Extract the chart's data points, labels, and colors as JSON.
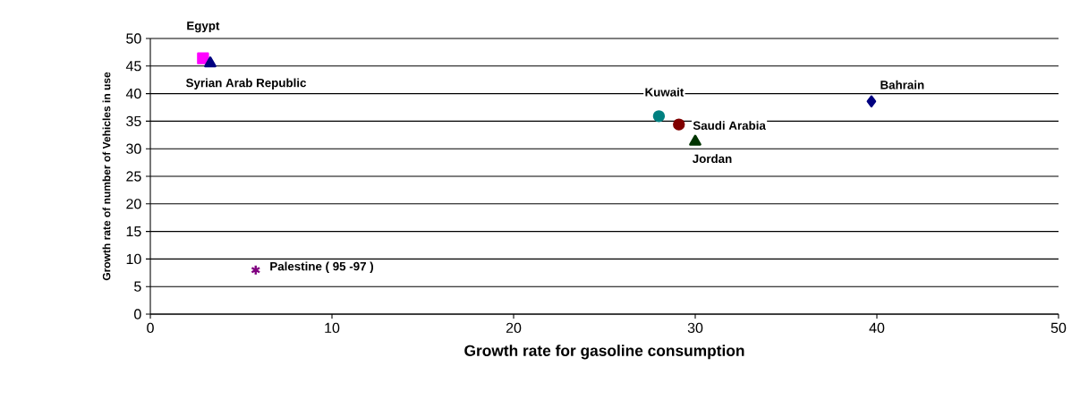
{
  "chart_data": {
    "type": "scatter",
    "xlabel": "Growth rate for gasoline consumption",
    "ylabel": "Growth rate of number of Vehicles in use",
    "xlim": [
      0,
      50
    ],
    "xticks": [
      0,
      10,
      20,
      30,
      40,
      50
    ],
    "ylim": [
      0,
      50
    ],
    "yticks": [
      0,
      5,
      10,
      15,
      20,
      25,
      30,
      35,
      40,
      45,
      50
    ],
    "grid": "y",
    "series": [
      {
        "name": "Egypt",
        "color": "#ff00ff",
        "marker": "square",
        "x": [
          2.9
        ],
        "values": [
          46.4
        ]
      },
      {
        "name": "Syrian Arab Republic",
        "color": "#000080",
        "marker": "triangle",
        "x": [
          3.3
        ],
        "values": [
          45.5
        ]
      },
      {
        "name": "Palestine ( 95 -97 )",
        "color": "#800080",
        "marker": "cross",
        "x": [
          5.8
        ],
        "values": [
          8.0
        ]
      },
      {
        "name": "Kuwait",
        "color": "#008080",
        "marker": "circle",
        "x": [
          28.0
        ],
        "values": [
          35.9
        ]
      },
      {
        "name": "Saudi Arabia",
        "color": "#800000",
        "marker": "circle",
        "x": [
          29.1
        ],
        "values": [
          34.4
        ]
      },
      {
        "name": "Jordan",
        "color": "#003300",
        "marker": "triangle",
        "x": [
          30.0
        ],
        "values": [
          31.3
        ]
      },
      {
        "name": "Bahrain",
        "color": "#000080",
        "marker": "diamond",
        "x": [
          39.7
        ],
        "values": [
          38.6
        ]
      }
    ]
  }
}
